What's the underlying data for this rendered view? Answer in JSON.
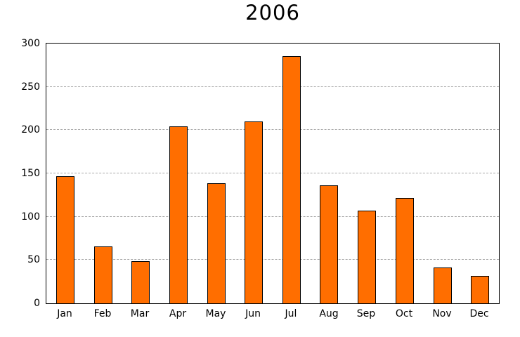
{
  "chart_data": {
    "type": "bar",
    "title": "2006",
    "categories": [
      "Jan",
      "Feb",
      "Mar",
      "Apr",
      "May",
      "Jun",
      "Jul",
      "Aug",
      "Sep",
      "Oct",
      "Nov",
      "Dec"
    ],
    "values": [
      147,
      66,
      49,
      204,
      139,
      210,
      285,
      136,
      107,
      122,
      41,
      32
    ],
    "xlabel": "",
    "ylabel": "",
    "ylim": [
      0,
      300
    ],
    "yticks": [
      0,
      50,
      100,
      150,
      200,
      250,
      300
    ],
    "grid": "horizontal dotted, at 50..250",
    "legend": "none",
    "colors": {
      "bar_fill": "#FF6E00",
      "bar_border": "#000000",
      "gridline": "#A8A8A8",
      "axis_frame": "#000000",
      "background": "#FFFFFF",
      "text": "#000000"
    }
  }
}
